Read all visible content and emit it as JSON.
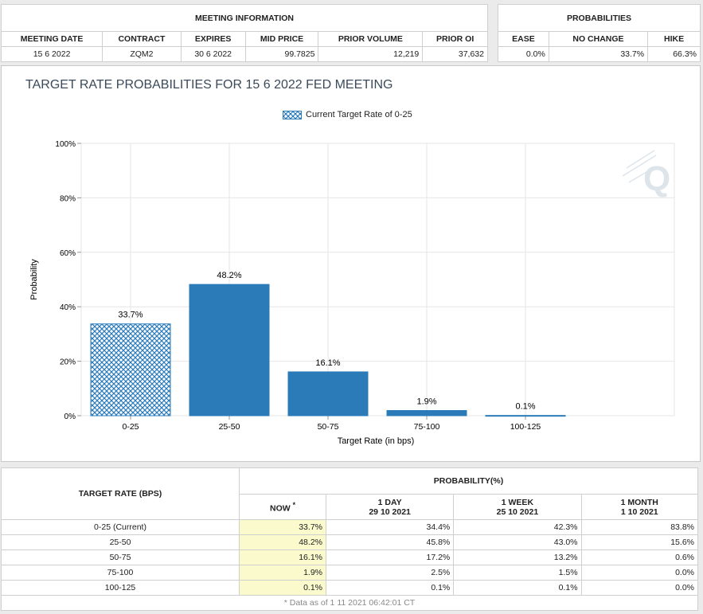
{
  "meeting_info": {
    "header": "MEETING INFORMATION",
    "columns": [
      "MEETING DATE",
      "CONTRACT",
      "EXPIRES",
      "MID PRICE",
      "PRIOR VOLUME",
      "PRIOR OI"
    ],
    "values": [
      "15 6 2022",
      "ZQM2",
      "30 6 2022",
      "99.7825",
      "12,219",
      "37,632"
    ]
  },
  "probabilities": {
    "header": "PROBABILITIES",
    "columns": [
      "EASE",
      "NO CHANGE",
      "HIKE"
    ],
    "values": [
      "0.0%",
      "33.7%",
      "66.3%"
    ]
  },
  "colors": {
    "bar": "#2b7bb9",
    "grid": "#e6e6e6",
    "now_bg": "#fafacd"
  },
  "chart_data": {
    "type": "bar",
    "title": "TARGET RATE PROBABILITIES FOR 15 6 2022 FED MEETING",
    "legend": [
      "Current Target Rate of 0-25"
    ],
    "xlabel": "Target Rate (in bps)",
    "ylabel": "Probability",
    "categories": [
      "0-25",
      "25-50",
      "50-75",
      "75-100",
      "100-125"
    ],
    "values": [
      33.7,
      48.2,
      16.1,
      1.9,
      0.1
    ],
    "value_labels": [
      "33.7%",
      "48.2%",
      "16.1%",
      "1.9%",
      "0.1%"
    ],
    "current_category": "0-25",
    "ylim": [
      0,
      100
    ],
    "yticks": [
      0,
      20,
      40,
      60,
      80,
      100
    ],
    "ytick_labels": [
      "0%",
      "20%",
      "40%",
      "60%",
      "80%",
      "100%"
    ],
    "grid": true,
    "legend_position": "top-center"
  },
  "table": {
    "target_rate_header": "TARGET RATE (BPS)",
    "probability_header": "PROBABILITY(%)",
    "now_header": "NOW",
    "now_marker": "*",
    "periods": [
      {
        "label": "1 DAY",
        "date": "29 10 2021"
      },
      {
        "label": "1 WEEK",
        "date": "25 10 2021"
      },
      {
        "label": "1 MONTH",
        "date": "1 10 2021"
      }
    ],
    "rows": [
      {
        "rate": "0-25 (Current)",
        "now": "33.7%",
        "d1": "34.4%",
        "w1": "42.3%",
        "m1": "83.8%"
      },
      {
        "rate": "25-50",
        "now": "48.2%",
        "d1": "45.8%",
        "w1": "43.0%",
        "m1": "15.6%"
      },
      {
        "rate": "50-75",
        "now": "16.1%",
        "d1": "17.2%",
        "w1": "13.2%",
        "m1": "0.6%"
      },
      {
        "rate": "75-100",
        "now": "1.9%",
        "d1": "2.5%",
        "w1": "1.5%",
        "m1": "0.0%"
      },
      {
        "rate": "100-125",
        "now": "0.1%",
        "d1": "0.1%",
        "w1": "0.1%",
        "m1": "0.0%"
      }
    ],
    "footnote": "* Data as of 1 11 2021 06:42:01 CT"
  }
}
